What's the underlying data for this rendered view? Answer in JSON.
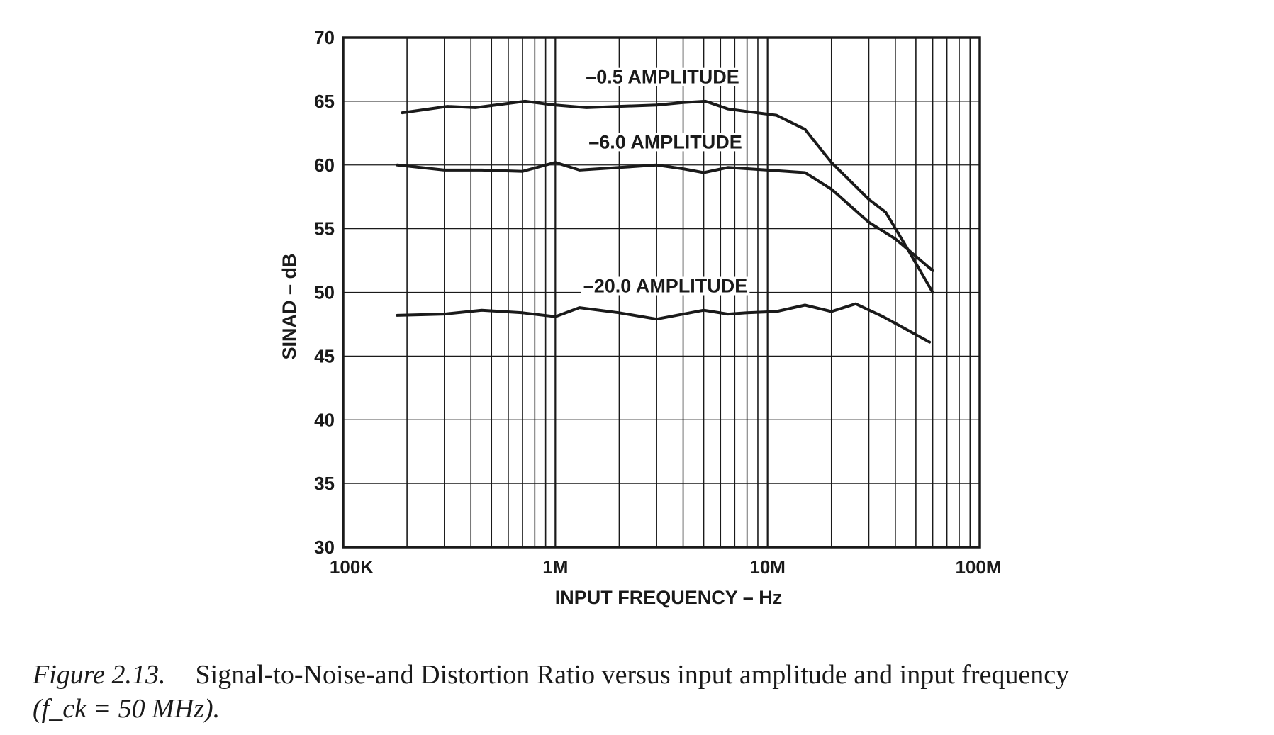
{
  "chart_data": {
    "type": "line",
    "xlabel": "INPUT FREQUENCY – Hz",
    "ylabel": "SINAD – dB",
    "xscale": "log",
    "xlim": [
      100000,
      100000000
    ],
    "ylim": [
      30,
      70
    ],
    "xticks": [
      {
        "value": 100000,
        "label": "100K"
      },
      {
        "value": 1000000,
        "label": "1M"
      },
      {
        "value": 10000000,
        "label": "10M"
      },
      {
        "value": 100000000,
        "label": "100M"
      }
    ],
    "yticks": [
      {
        "value": 30,
        "label": "30"
      },
      {
        "value": 35,
        "label": "35"
      },
      {
        "value": 40,
        "label": "40"
      },
      {
        "value": 45,
        "label": "45"
      },
      {
        "value": 50,
        "label": "50"
      },
      {
        "value": 55,
        "label": "55"
      },
      {
        "value": 60,
        "label": "60"
      },
      {
        "value": 65,
        "label": "65"
      },
      {
        "value": 70,
        "label": "70"
      }
    ],
    "grid": true,
    "series": [
      {
        "name": "–0.5 AMPLITUDE",
        "label_at": {
          "x": 3200000,
          "y": 66.4
        },
        "x": [
          190000,
          310000,
          420000,
          720000,
          1000000,
          1400000,
          2000000,
          3000000,
          4000000,
          5100000,
          6500000,
          8000000,
          11000000,
          15000000,
          20000000,
          30000000,
          36000000,
          45000000,
          60000000
        ],
        "y": [
          64.1,
          64.6,
          64.5,
          65.0,
          64.7,
          64.5,
          64.6,
          64.7,
          64.9,
          65.0,
          64.4,
          64.2,
          63.9,
          62.8,
          60.2,
          57.3,
          56.3,
          53.6,
          50.0
        ]
      },
      {
        "name": "–6.0 AMPLITUDE",
        "label_at": {
          "x": 3300000,
          "y": 61.3
        },
        "x": [
          180000,
          300000,
          450000,
          700000,
          1000000,
          1300000,
          2000000,
          3000000,
          4000000,
          5000000,
          6500000,
          10000000,
          15000000,
          20000000,
          30000000,
          40000000,
          60000000
        ],
        "y": [
          60.0,
          59.6,
          59.6,
          59.5,
          60.2,
          59.6,
          59.8,
          60.0,
          59.7,
          59.4,
          59.8,
          59.6,
          59.4,
          58.1,
          55.5,
          54.2,
          51.7
        ]
      },
      {
        "name": "–20.0 AMPLITUDE",
        "label_at": {
          "x": 3300000,
          "y": 50.0
        },
        "x": [
          180000,
          300000,
          450000,
          700000,
          1000000,
          1300000,
          2000000,
          3000000,
          5000000,
          6500000,
          8000000,
          11000000,
          15000000,
          20000000,
          26000000,
          35000000,
          45000000,
          58000000
        ],
        "y": [
          48.2,
          48.3,
          48.6,
          48.4,
          48.1,
          48.8,
          48.4,
          47.9,
          48.6,
          48.3,
          48.4,
          48.5,
          49.0,
          48.5,
          49.1,
          48.1,
          47.1,
          46.1
        ]
      }
    ]
  },
  "caption": {
    "figure_label": "Figure 2.13.",
    "text": "Signal-to-Noise-and Distortion Ratio versus input amplitude and input frequency",
    "math": "(f_ck = 50 MHz)."
  }
}
